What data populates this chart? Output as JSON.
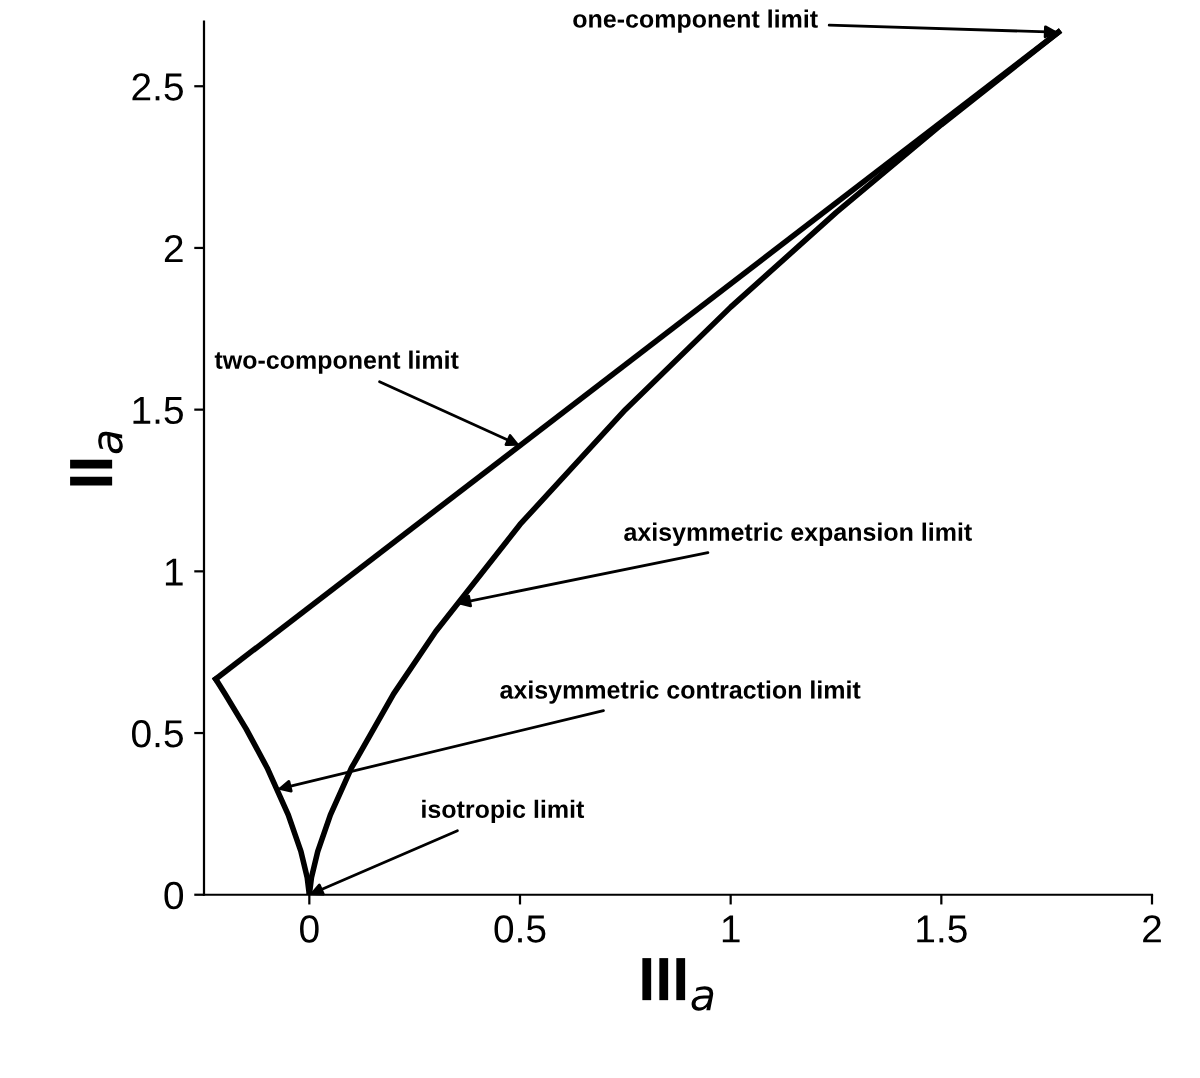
{
  "chart_data": {
    "type": "line",
    "xlabel": "III$_{a}$",
    "ylabel": "II$_{a}$",
    "series": [
      {
        "color": "#000000",
        "x": [
          -0.2222,
          1.7778
        ],
        "values": [
          0.667,
          2.667
        ]
      },
      {
        "color": "#000000",
        "x": [
          -0.2222,
          -0.2,
          -0.15,
          -0.1,
          -0.05,
          -0.02,
          -0.005,
          0
        ],
        "values": [
          0.667,
          0.621,
          0.513,
          0.392,
          0.247,
          0.134,
          0.053,
          0
        ]
      },
      {
        "color": "#000000",
        "x": [
          0,
          0.005,
          0.02,
          0.05,
          0.1,
          0.2,
          0.3,
          0.5,
          0.75,
          1.0,
          1.25,
          1.5,
          1.7778
        ],
        "values": [
          0,
          0.053,
          0.134,
          0.247,
          0.392,
          0.621,
          0.814,
          1.145,
          1.5,
          1.817,
          2.109,
          2.381,
          2.667
        ]
      }
    ],
    "annotations": [
      {
        "text": "one-component limit",
        "x": 1.7778,
        "y": 2.667
      },
      {
        "text": "two-component limit",
        "x": 0.5,
        "y": 1.389
      },
      {
        "text": "axisymmetric expansion limit",
        "x": 0.35,
        "y": 0.9
      },
      {
        "text": "axisymmetric contraction limit",
        "x": -0.076,
        "y": 0.326
      },
      {
        "text": "isotropic limit",
        "x": 0,
        "y": 0
      }
    ],
    "xlim": [
      -0.25,
      2.0
    ],
    "ylim": [
      0,
      2.7
    ],
    "xticks": [
      0,
      0.5,
      1,
      1.5,
      2
    ],
    "yticks": [
      0,
      0.5,
      1,
      1.5,
      2,
      2.5
    ],
    "grid": false,
    "legend": false,
    "marker": "none",
    "line_style": "solid"
  }
}
